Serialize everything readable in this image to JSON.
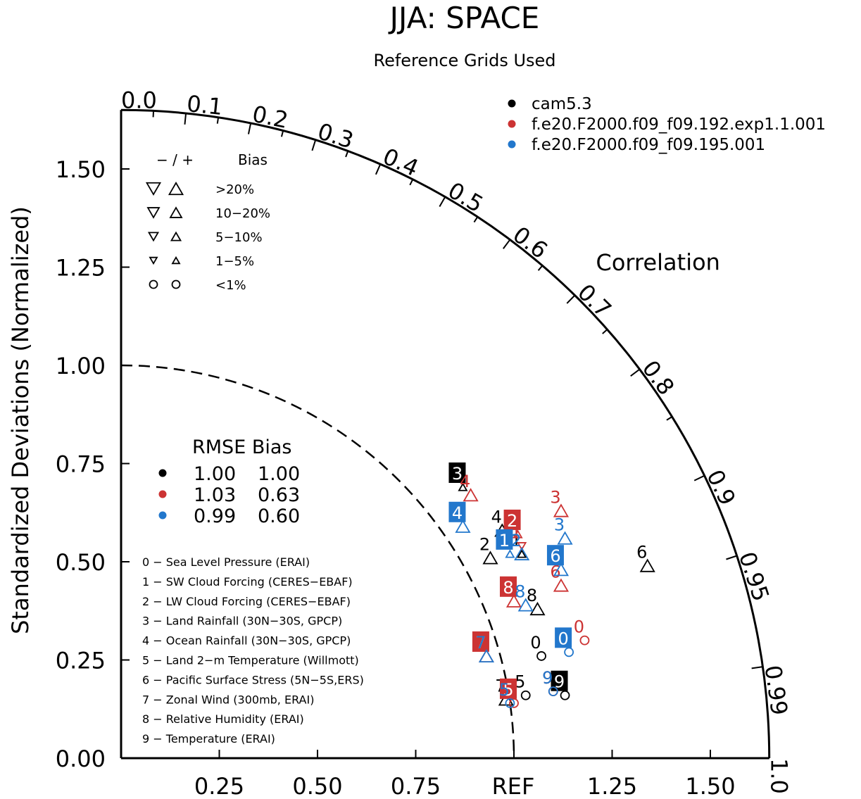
{
  "chart_data": {
    "type": "scatter",
    "subtype": "taylor-diagram",
    "title": "JJA: SPACE",
    "subtitle": "Reference Grids Used",
    "ylabel": "Standardized Deviations (Normalized)",
    "arc_label": "Correlation",
    "ref_label": "REF",
    "std_range": [
      0,
      1.65
    ],
    "x_ticks": [
      "0.25",
      "0.50",
      "0.75",
      "1.25",
      "1.50"
    ],
    "x_tick_values": [
      0.25,
      0.5,
      0.75,
      1.25,
      1.5
    ],
    "y_ticks": [
      "0.00",
      "0.25",
      "0.50",
      "0.75",
      "1.00",
      "1.25",
      "1.50"
    ],
    "y_tick_values": [
      0,
      0.25,
      0.5,
      0.75,
      1.0,
      1.25,
      1.5
    ],
    "corr_ticks_major": [
      "0.0",
      "0.1",
      "0.2",
      "0.3",
      "0.4",
      "0.5",
      "0.6",
      "0.7",
      "0.8",
      "0.9",
      "0.95",
      "0.99",
      "1.0"
    ],
    "corr_tick_values": [
      0.0,
      0.1,
      0.2,
      0.3,
      0.4,
      0.5,
      0.6,
      0.7,
      0.8,
      0.9,
      0.95,
      0.99,
      1.0
    ],
    "corr_minor_values": [
      0.05,
      0.15,
      0.25,
      0.35,
      0.45,
      0.55,
      0.65,
      0.75,
      0.85
    ],
    "reference_std": 1.0,
    "series": [
      {
        "name": "cam5.3",
        "color": "#000000",
        "rmse": "1.00",
        "bias": "1.00",
        "points": [
          {
            "var": "0",
            "x": 1.07,
            "y": 0.26,
            "marker": "circle"
          },
          {
            "var": "1",
            "x": 1.02,
            "y": 0.52,
            "marker": "tri-up-small"
          },
          {
            "var": "2",
            "x": 0.94,
            "y": 0.51,
            "marker": "tri-up"
          },
          {
            "var": "3",
            "x": 0.87,
            "y": 0.69,
            "marker": "tri-up-small",
            "boxed": true
          },
          {
            "var": "4",
            "x": 0.97,
            "y": 0.58,
            "marker": "tri-up"
          },
          {
            "var": "5",
            "x": 1.03,
            "y": 0.16,
            "marker": "circle"
          },
          {
            "var": "6",
            "x": 1.34,
            "y": 0.49,
            "marker": "tri-up"
          },
          {
            "var": "7",
            "x": 0.98,
            "y": 0.15,
            "marker": "tri-up"
          },
          {
            "var": "8",
            "x": 1.06,
            "y": 0.38,
            "marker": "tri-up"
          },
          {
            "var": "9",
            "x": 1.13,
            "y": 0.16,
            "marker": "circle",
            "boxed": true
          }
        ]
      },
      {
        "name": "f.e20.F2000.f09_f09.192.exp1.1.001",
        "color": "#cc3333",
        "rmse": "1.03",
        "bias": "0.63",
        "points": [
          {
            "var": "0",
            "x": 1.18,
            "y": 0.3,
            "marker": "circle"
          },
          {
            "var": "1",
            "x": 1.02,
            "y": 0.54,
            "marker": "tri-down-small"
          },
          {
            "var": "2",
            "x": 1.01,
            "y": 0.57,
            "marker": "tri-up-small",
            "boxed": true
          },
          {
            "var": "3",
            "x": 1.12,
            "y": 0.63,
            "marker": "tri-up"
          },
          {
            "var": "4",
            "x": 0.89,
            "y": 0.67,
            "marker": "tri-up"
          },
          {
            "var": "5",
            "x": 1.0,
            "y": 0.14,
            "marker": "circle",
            "boxed": true
          },
          {
            "var": "6",
            "x": 1.12,
            "y": 0.44,
            "marker": "tri-up"
          },
          {
            "var": "7",
            "x": 0.93,
            "y": 0.26,
            "marker": "tri-up",
            "boxed": true
          },
          {
            "var": "8",
            "x": 1.0,
            "y": 0.4,
            "marker": "tri-up",
            "boxed": true
          },
          {
            "var": "9",
            "x": 1.1,
            "y": 0.17,
            "marker": "circle"
          }
        ]
      },
      {
        "name": "f.e20.F2000.f09_f09.195.001",
        "color": "#2277cc",
        "rmse": "0.99",
        "bias": "0.60",
        "points": [
          {
            "var": "0",
            "x": 1.14,
            "y": 0.27,
            "marker": "circle",
            "boxed": true
          },
          {
            "var": "1",
            "x": 0.99,
            "y": 0.52,
            "marker": "tri-up-small",
            "boxed": true
          },
          {
            "var": "2",
            "x": 1.02,
            "y": 0.52,
            "marker": "tri-up"
          },
          {
            "var": "3",
            "x": 1.13,
            "y": 0.56,
            "marker": "tri-up"
          },
          {
            "var": "4",
            "x": 0.87,
            "y": 0.59,
            "marker": "tri-up",
            "boxed": true
          },
          {
            "var": "5",
            "x": 0.99,
            "y": 0.14,
            "marker": "circle"
          },
          {
            "var": "6",
            "x": 1.12,
            "y": 0.48,
            "marker": "tri-up",
            "boxed": true
          },
          {
            "var": "7",
            "x": 0.93,
            "y": 0.26,
            "marker": "tri-up"
          },
          {
            "var": "8",
            "x": 1.03,
            "y": 0.39,
            "marker": "tri-up"
          },
          {
            "var": "9",
            "x": 1.1,
            "y": 0.17,
            "marker": "circle"
          }
        ]
      }
    ],
    "bias_legend": {
      "header_signs": "− / +",
      "header_label": "Bias",
      "rows": [
        {
          "label": ">20%",
          "size": "xl"
        },
        {
          "label": "10−20%",
          "size": "l"
        },
        {
          "label": "5−10%",
          "size": "m"
        },
        {
          "label": "1−5%",
          "size": "s"
        },
        {
          "label": "<1%",
          "size": "circle"
        }
      ]
    },
    "stats_legend": {
      "header": "RMSE Bias"
    },
    "variables": [
      "0 − Sea Level Pressure (ERAI)",
      "1 − SW Cloud Forcing (CERES−EBAF)",
      "2 − LW Cloud Forcing (CERES−EBAF)",
      "3 − Land Rainfall (30N−30S, GPCP)",
      "4 − Ocean Rainfall (30N−30S, GPCP)",
      "5 − Land 2−m Temperature (Willmott)",
      "6 − Pacific Surface Stress (5N−5S,ERS)",
      "7 − Zonal Wind (300mb, ERAI)",
      "8 − Relative Humidity (ERAI)",
      "9 − Temperature (ERAI)"
    ]
  }
}
